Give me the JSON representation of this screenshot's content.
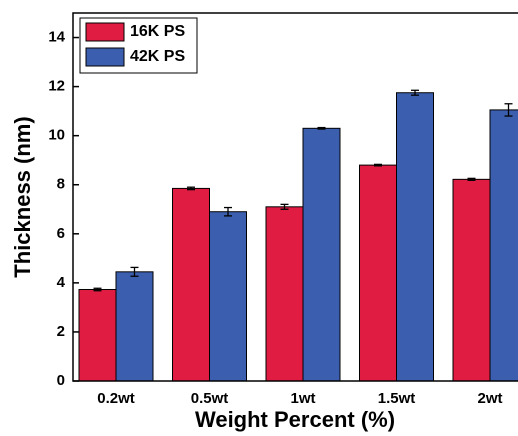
{
  "chart_data": {
    "type": "bar",
    "x_label": "Weight Percent (%)",
    "y_label": "Thickness (nm)",
    "categories": [
      "0.2wt",
      "0.5wt",
      "1wt",
      "1.5wt",
      "2wt"
    ],
    "series": [
      {
        "name": "16K PS",
        "color": "#e11c43",
        "values": [
          3.73,
          7.85,
          7.1,
          8.8,
          8.22
        ],
        "errors": [
          0.05,
          0.05,
          0.1,
          0.03,
          0.04
        ]
      },
      {
        "name": "42K PS",
        "color": "#3b5fae",
        "values": [
          4.45,
          6.9,
          10.3,
          11.75,
          11.05
        ],
        "errors": [
          0.18,
          0.17,
          0.03,
          0.1,
          0.25
        ]
      }
    ],
    "ylim": [
      0,
      15
    ],
    "yticks": [
      0,
      2,
      4,
      6,
      8,
      10,
      12,
      14
    ]
  }
}
